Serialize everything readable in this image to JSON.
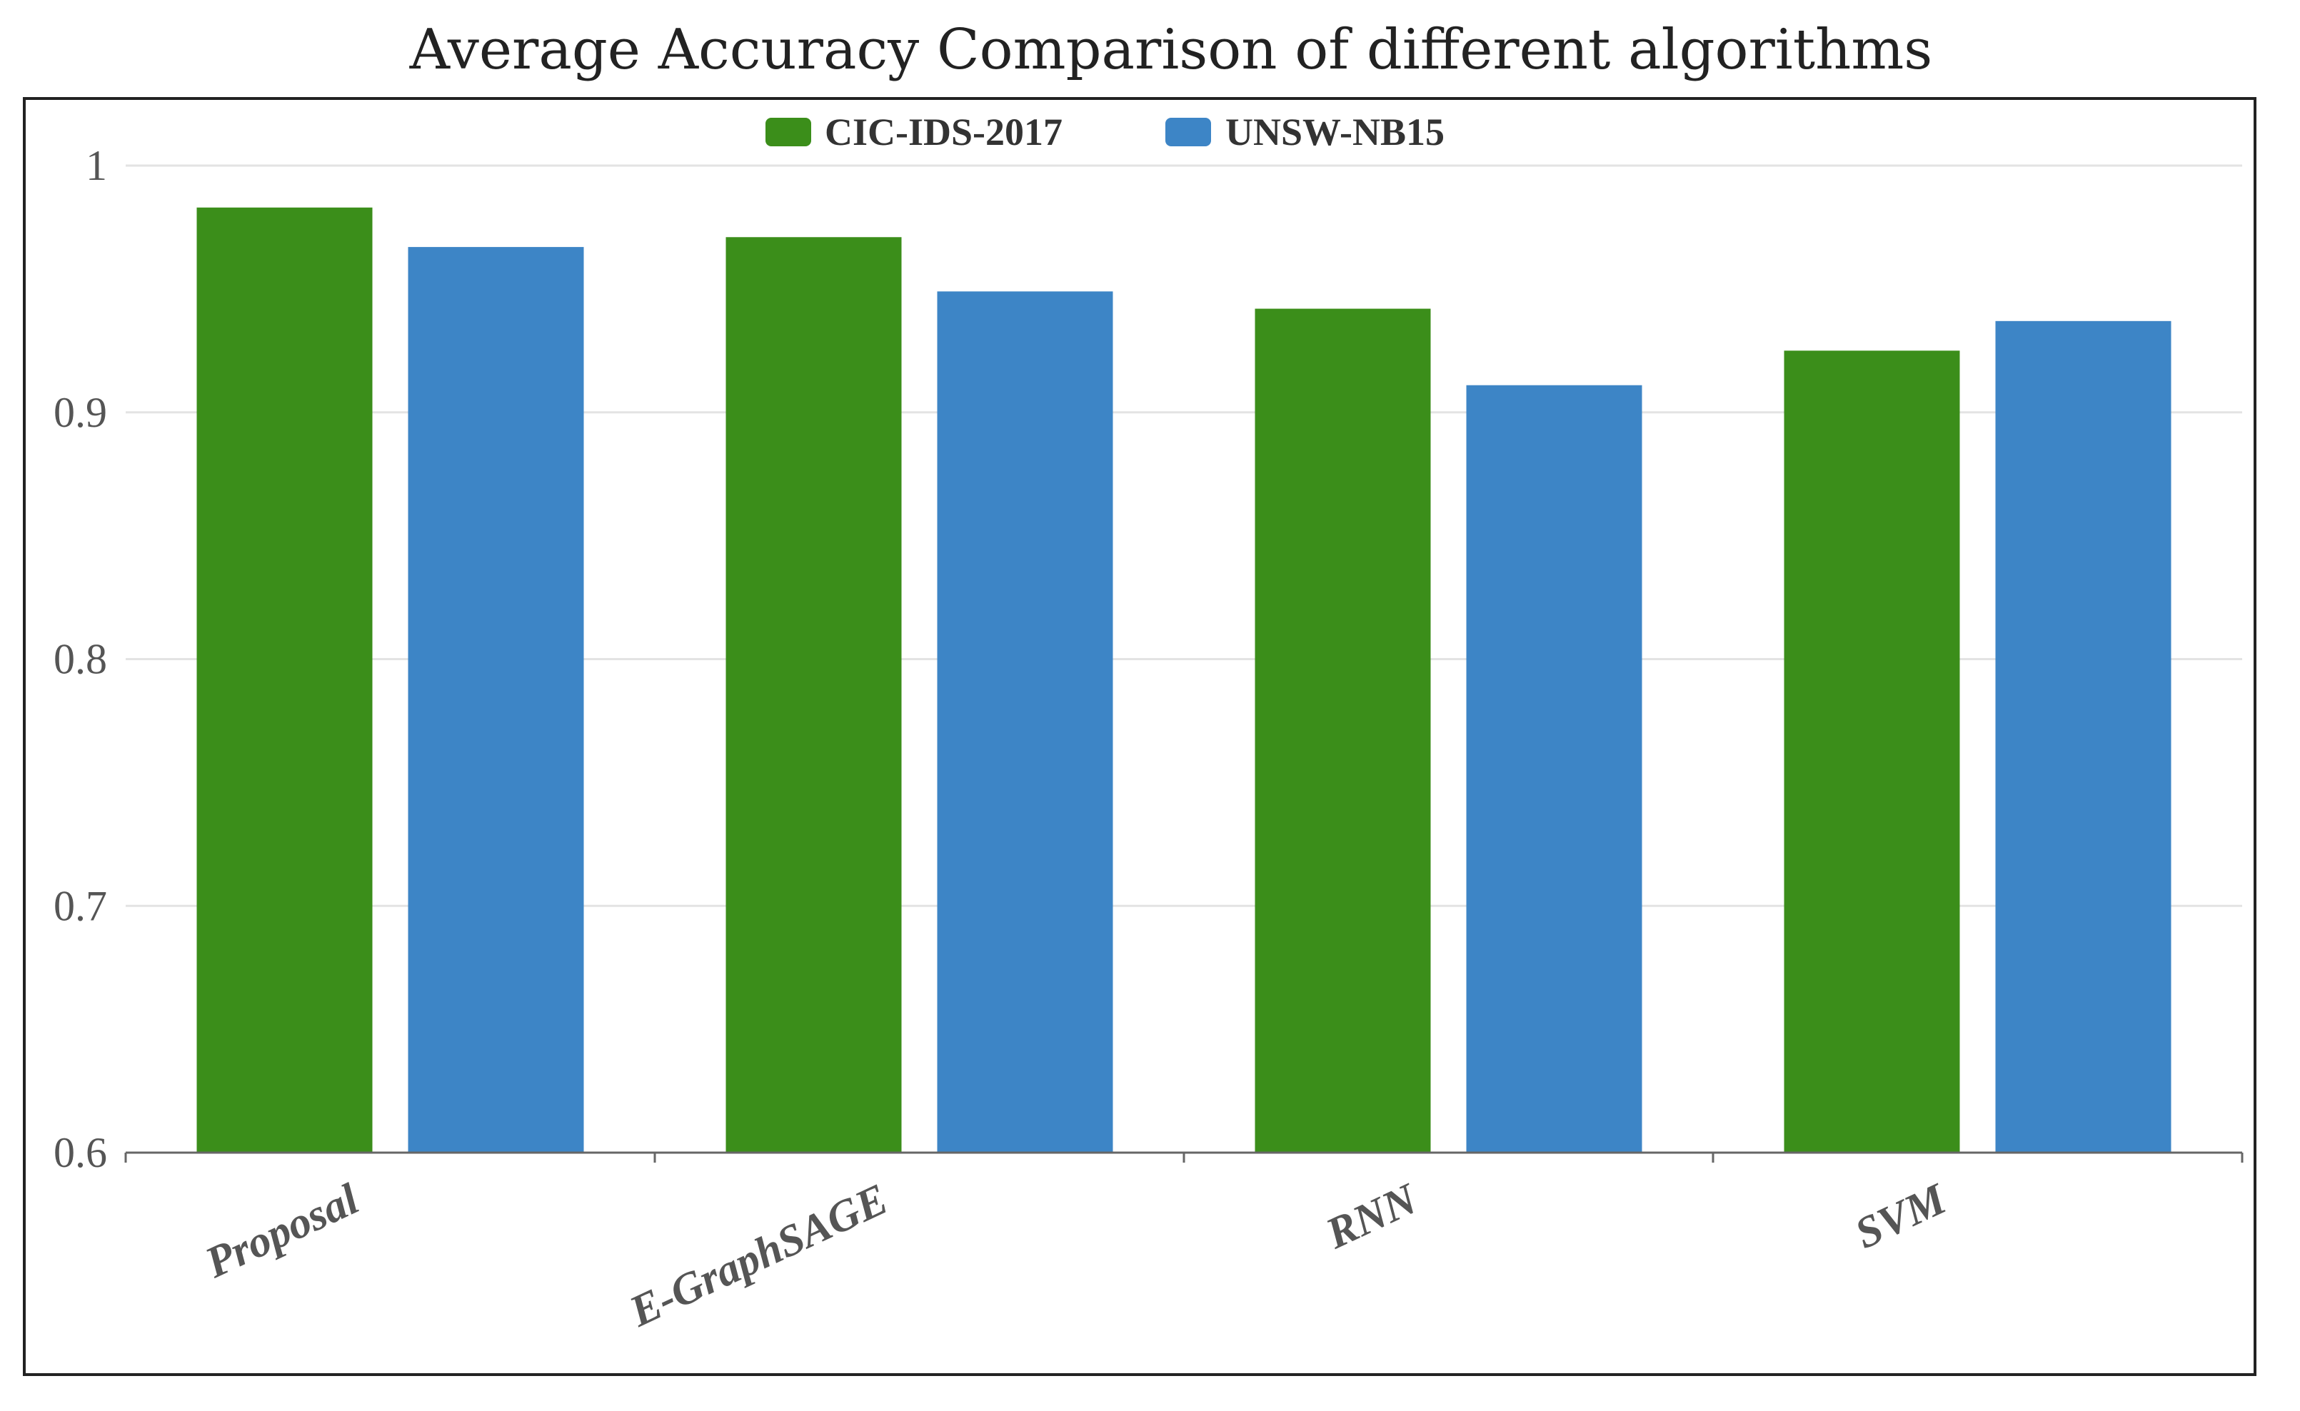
{
  "chart_data": {
    "type": "bar",
    "title": "Average Accuracy Comparison of different algorithms",
    "xlabel": "",
    "ylabel": "",
    "categories": [
      "Proposal",
      "E-GraphSAGE",
      "RNN",
      "SVM"
    ],
    "series": [
      {
        "name": "CIC-IDS-2017",
        "color": "#3b8e1a",
        "values": [
          0.983,
          0.971,
          0.942,
          0.925
        ]
      },
      {
        "name": "UNSW-NB15",
        "color": "#3d85c6",
        "values": [
          0.967,
          0.949,
          0.911,
          0.937
        ]
      }
    ],
    "ylim": [
      0.6,
      1.0
    ],
    "yticks": [
      "0.6",
      "0.7",
      "0.8",
      "0.9",
      "1"
    ],
    "yticks_values": [
      0.6,
      0.7,
      0.8,
      0.9,
      1.0
    ],
    "grid": true,
    "legend_position": "top-center"
  }
}
